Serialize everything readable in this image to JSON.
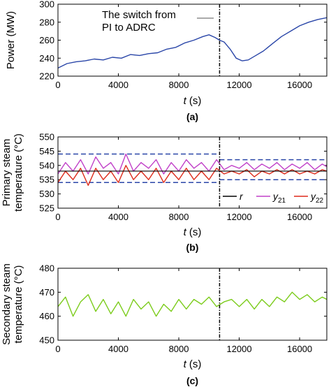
{
  "chart_data": [
    {
      "type": "line",
      "panel_label": "(a)",
      "xlabel_var": "t",
      "xlabel_unit": " (s)",
      "ylabel": "Power (MW)",
      "xlim": [
        0,
        17800
      ],
      "ylim": [
        220,
        300
      ],
      "x_ticks": [
        0,
        4000,
        8000,
        12000,
        16000
      ],
      "y_ticks": [
        220,
        240,
        260,
        280,
        300
      ],
      "switch_time": 10700,
      "annotation": [
        "The switch from",
        "PI to ADRC"
      ],
      "series": [
        {
          "color": "#2a46a8",
          "x": [
            0,
            600,
            1200,
            1800,
            2400,
            3000,
            3600,
            4200,
            4800,
            5400,
            6000,
            6600,
            7200,
            7800,
            8400,
            9000,
            9600,
            10000,
            10400,
            10700,
            11000,
            11400,
            11800,
            12200,
            12600,
            13000,
            13600,
            14200,
            14800,
            15400,
            16000,
            16600,
            17200,
            17800
          ],
          "y": [
            229,
            234,
            236,
            237,
            239,
            238,
            241,
            240,
            244,
            243,
            245,
            246,
            250,
            252,
            257,
            260,
            264,
            266,
            263,
            260,
            258,
            250,
            240,
            237,
            238,
            242,
            248,
            256,
            264,
            270,
            276,
            280,
            283,
            285
          ]
        }
      ]
    },
    {
      "type": "line",
      "panel_label": "(b)",
      "xlabel_var": "t",
      "xlabel_unit": " (s)",
      "ylabel_lines": [
        "Primary steam",
        "temperature (°C)"
      ],
      "xlim": [
        0,
        17800
      ],
      "ylim": [
        525,
        550
      ],
      "x_ticks": [
        0,
        4000,
        8000,
        12000,
        16000
      ],
      "y_ticks": [
        525,
        530,
        535,
        540,
        545,
        550
      ],
      "switch_time": 10700,
      "bounds_before": [
        534,
        544
      ],
      "bounds_after": [
        535,
        542
      ],
      "setpoint": 538,
      "series": [
        {
          "name": "r",
          "color": "#000000"
        },
        {
          "name": "y21",
          "color": "#c040c8",
          "x": [
            0,
            500,
            1000,
            1500,
            2000,
            2500,
            3000,
            3500,
            4000,
            4500,
            5000,
            5500,
            6000,
            6500,
            7000,
            7500,
            8000,
            8500,
            9000,
            9500,
            10000,
            10500,
            11000,
            11500,
            12000,
            12500,
            13000,
            13500,
            14000,
            14500,
            15000,
            15500,
            16000,
            16500,
            17000,
            17500,
            17800
          ],
          "y": [
            537,
            541,
            538,
            542,
            537,
            543,
            539,
            541,
            537,
            544,
            538,
            541,
            539,
            542,
            537,
            541,
            538,
            542,
            539,
            541,
            538,
            542,
            538.5,
            540,
            539,
            541,
            538.5,
            540.5,
            539,
            541,
            538.5,
            540.5,
            539,
            541,
            538.5,
            540.5,
            539.5
          ]
        },
        {
          "name": "y22",
          "color": "#dd2a1a",
          "x": [
            0,
            500,
            1000,
            1500,
            2000,
            2500,
            3000,
            3500,
            4000,
            4500,
            5000,
            5500,
            6000,
            6500,
            7000,
            7500,
            8000,
            8500,
            9000,
            9500,
            10000,
            10500,
            11000,
            11500,
            12000,
            12500,
            13000,
            13500,
            14000,
            14500,
            15000,
            15500,
            16000,
            16500,
            17000,
            17500,
            17800
          ],
          "y": [
            534,
            538,
            535,
            539,
            533,
            539,
            535,
            538,
            534,
            540,
            535,
            538,
            535,
            539,
            534,
            538,
            535,
            539,
            535,
            538,
            535,
            539,
            537,
            538,
            537,
            538.5,
            536,
            538,
            537,
            538.5,
            537,
            538.5,
            537,
            538,
            537,
            538.5,
            538
          ]
        }
      ],
      "legend_position": "bottom-right"
    },
    {
      "type": "line",
      "panel_label": "(c)",
      "xlabel_var": "t",
      "xlabel_unit": " (s)",
      "ylabel_lines": [
        "Secondary steam",
        "temperature (°C)"
      ],
      "xlim": [
        0,
        17800
      ],
      "ylim": [
        450,
        480
      ],
      "x_ticks": [
        0,
        4000,
        8000,
        12000,
        16000
      ],
      "y_ticks": [
        450,
        460,
        470,
        480
      ],
      "switch_time": 10700,
      "series": [
        {
          "color": "#7ccc1c",
          "x": [
            0,
            500,
            1000,
            1500,
            2000,
            2500,
            3000,
            3500,
            4000,
            4500,
            5000,
            5500,
            6000,
            6500,
            7000,
            7500,
            8000,
            8500,
            9000,
            9500,
            10000,
            10500,
            11000,
            11500,
            12000,
            12500,
            13000,
            13500,
            14000,
            14500,
            15000,
            15500,
            16000,
            16500,
            17000,
            17500,
            17800
          ],
          "y": [
            464,
            468,
            460,
            466,
            469,
            462,
            467,
            461,
            466,
            460,
            467,
            463,
            466,
            460,
            465,
            462,
            467,
            463,
            467,
            465,
            468,
            464,
            466,
            467,
            464,
            467,
            463,
            467,
            464,
            468,
            466,
            470,
            467,
            469,
            466,
            468,
            467
          ]
        }
      ]
    }
  ]
}
